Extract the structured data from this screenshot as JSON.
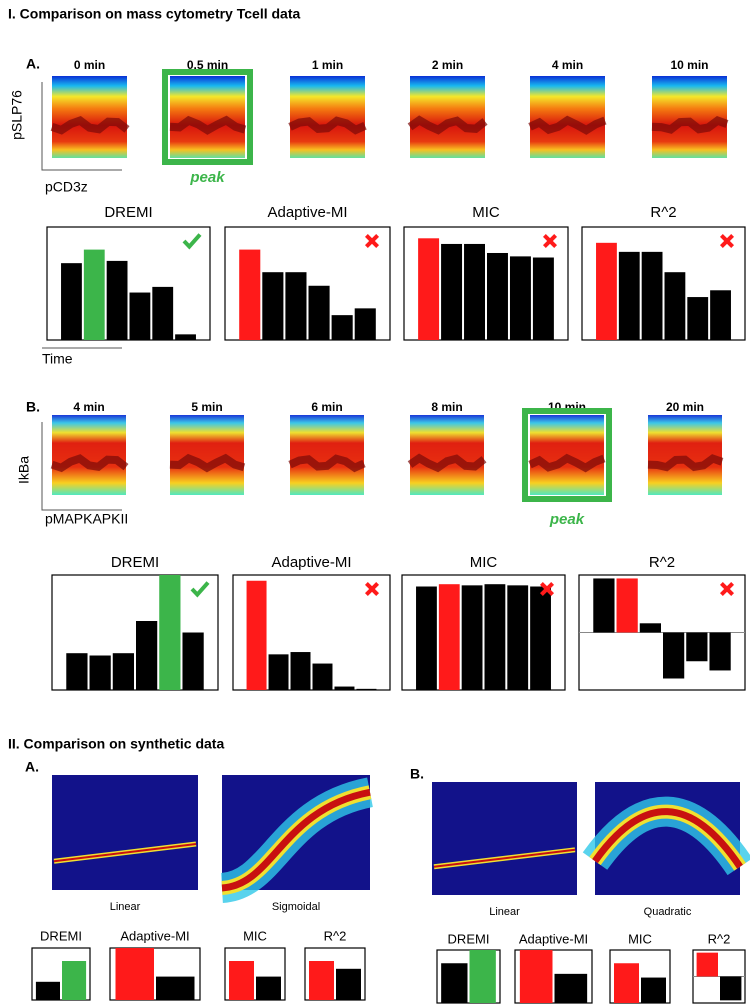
{
  "section_1": {
    "title": "I. Comparison on mass cytometry Tcell data",
    "panel_a": {
      "label": "A.",
      "timepoints": [
        "0 min",
        "0.5 min",
        "1 min",
        "2 min",
        "4 min",
        "10 min"
      ],
      "y_axis_label": "pSLP76",
      "x_axis_label": "pCD3z",
      "peak_label": "peak",
      "peak_index": 1,
      "time_label": "Time",
      "metrics": [
        {
          "name": "DREMI",
          "values": [
            68,
            80,
            70,
            42,
            47,
            5
          ],
          "ylim": [
            0,
            100
          ],
          "highlight_index": 1,
          "highlight_color": "#3cb54a",
          "verdict": "check"
        },
        {
          "name": "Adaptive-MI",
          "values": [
            80,
            60,
            60,
            48,
            22,
            28
          ],
          "ylim": [
            0,
            100
          ],
          "highlight_index": 0,
          "highlight_color": "#ff1a1a",
          "verdict": "cross"
        },
        {
          "name": "MIC",
          "values": [
            90,
            85,
            85,
            77,
            74,
            73
          ],
          "ylim": [
            0,
            100
          ],
          "highlight_index": 0,
          "highlight_color": "#ff1a1a",
          "verdict": "cross"
        },
        {
          "name": "R^2",
          "values": [
            86,
            78,
            78,
            60,
            38,
            44
          ],
          "ylim": [
            0,
            100
          ],
          "highlight_index": 0,
          "highlight_color": "#ff1a1a",
          "verdict": "cross"
        }
      ]
    },
    "panel_b": {
      "label": "B.",
      "timepoints": [
        "4 min",
        "5 min",
        "6 min",
        "8 min",
        "10 min",
        "20 min"
      ],
      "y_axis_label": "IkBa",
      "x_axis_label": "pMAPKAPKII",
      "peak_label": "peak",
      "peak_index": 4,
      "metrics": [
        {
          "name": "DREMI",
          "values": [
            32,
            30,
            32,
            60,
            100,
            50
          ],
          "ylim": [
            0,
            100
          ],
          "highlight_index": 4,
          "highlight_color": "#3cb54a",
          "verdict": "check"
        },
        {
          "name": "Adaptive-MI",
          "values": [
            95,
            31,
            33,
            23,
            3,
            1
          ],
          "ylim": [
            0,
            100
          ],
          "highlight_index": 0,
          "highlight_color": "#ff1a1a",
          "verdict": "cross"
        },
        {
          "name": "MIC",
          "values": [
            90,
            92,
            91,
            92,
            91,
            90
          ],
          "ylim": [
            0,
            100
          ],
          "highlight_index": 1,
          "highlight_color": "#ff1a1a",
          "verdict": "cross"
        },
        {
          "name": "R^2",
          "values": [
            47,
            47,
            8,
            -40,
            -25,
            -33
          ],
          "ylim": [
            -50,
            50
          ],
          "highlight_index": 1,
          "highlight_color": "#ff1a1a",
          "verdict": "cross"
        }
      ]
    }
  },
  "section_2": {
    "title": "II. Comparison on synthetic data",
    "panel_a": {
      "label": "A.",
      "images": [
        "Linear",
        "Sigmoidal"
      ],
      "metrics": [
        {
          "name": "DREMI",
          "values": [
            35,
            75
          ],
          "ylim": [
            0,
            100
          ],
          "highlight_index": 1,
          "highlight_color": "#3cb54a"
        },
        {
          "name": "Adaptive-MI",
          "values": [
            100,
            45
          ],
          "ylim": [
            0,
            100
          ],
          "highlight_index": 0,
          "highlight_color": "#ff1a1a"
        },
        {
          "name": "MIC",
          "values": [
            75,
            45
          ],
          "ylim": [
            0,
            100
          ],
          "highlight_index": 0,
          "highlight_color": "#ff1a1a"
        },
        {
          "name": "R^2",
          "values": [
            75,
            60
          ],
          "ylim": [
            0,
            100
          ],
          "highlight_index": 0,
          "highlight_color": "#ff1a1a"
        }
      ]
    },
    "panel_b": {
      "label": "B.",
      "images": [
        "Linear",
        "Quadratic"
      ],
      "metrics": [
        {
          "name": "DREMI",
          "values": [
            75,
            100
          ],
          "ylim": [
            0,
            100
          ],
          "highlight_index": 1,
          "highlight_color": "#3cb54a"
        },
        {
          "name": "Adaptive-MI",
          "values": [
            100,
            55
          ],
          "ylim": [
            0,
            100
          ],
          "highlight_index": 0,
          "highlight_color": "#ff1a1a"
        },
        {
          "name": "MIC",
          "values": [
            75,
            48
          ],
          "ylim": [
            0,
            100
          ],
          "highlight_index": 0,
          "highlight_color": "#ff1a1a"
        },
        {
          "name": "R^2",
          "values": [
            90,
            -90
          ],
          "ylim": [
            -100,
            100
          ],
          "highlight_index": 0,
          "highlight_color": "#ff1a1a"
        }
      ]
    }
  }
}
